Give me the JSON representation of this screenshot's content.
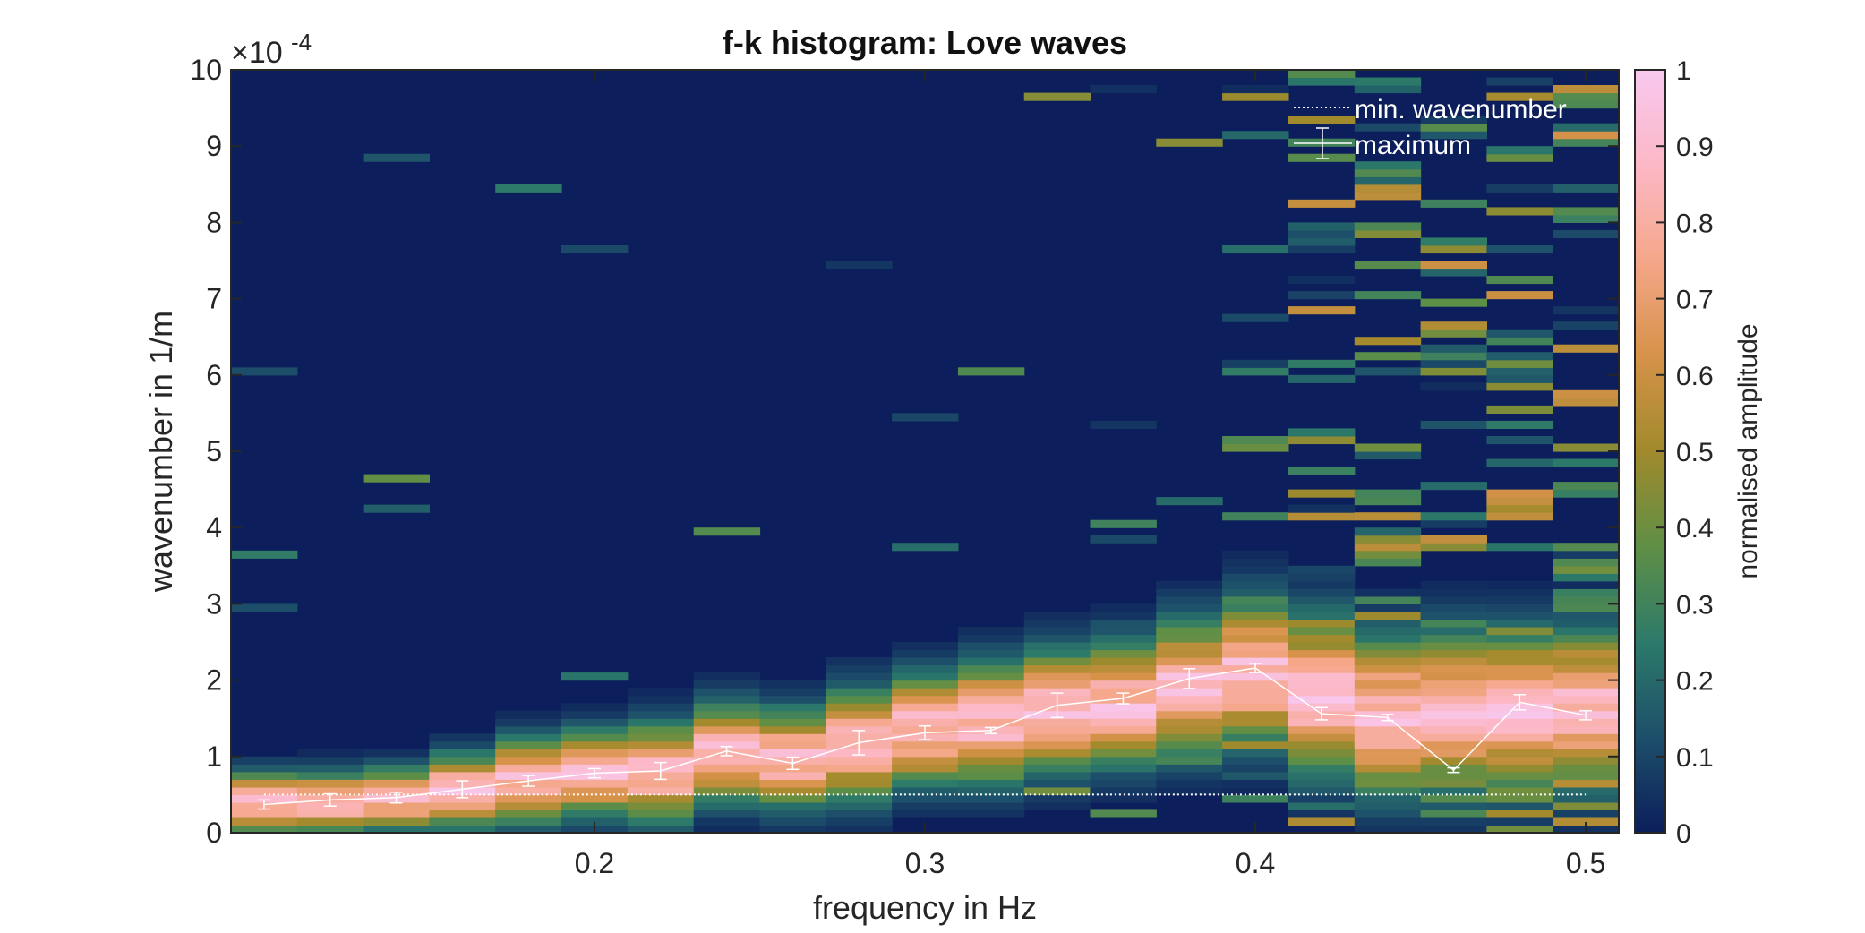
{
  "chart_data": {
    "type": "heatmap",
    "title": "f-k histogram: Love waves",
    "xlabel": "frequency in Hz",
    "ylabel": "wavenumber in 1/m",
    "y_exponent": {
      "base": "×10",
      "power": "-4"
    },
    "xlim": [
      0.09,
      0.51
    ],
    "ylim": [
      0,
      0.001
    ],
    "x_ticks": [
      {
        "value": 0.2,
        "label": "0.2"
      },
      {
        "value": 0.3,
        "label": "0.3"
      },
      {
        "value": 0.4,
        "label": "0.4"
      },
      {
        "value": 0.5,
        "label": "0.5"
      }
    ],
    "y_ticks": [
      {
        "value": 0.0,
        "label": "0"
      },
      {
        "value": 0.0001,
        "label": "1"
      },
      {
        "value": 0.0002,
        "label": "2"
      },
      {
        "value": 0.0003,
        "label": "3"
      },
      {
        "value": 0.0004,
        "label": "4"
      },
      {
        "value": 0.0005,
        "label": "5"
      },
      {
        "value": 0.0006,
        "label": "6"
      },
      {
        "value": 0.0007,
        "label": "7"
      },
      {
        "value": 0.0008,
        "label": "8"
      },
      {
        "value": 0.0009,
        "label": "9"
      },
      {
        "value": 0.001,
        "label": "10"
      }
    ],
    "colorbar": {
      "label": "normalised amplitude",
      "range": [
        0,
        1
      ],
      "ticks": [
        "0",
        "0.1",
        "0.2",
        "0.3",
        "0.4",
        "0.5",
        "0.6",
        "0.7",
        "0.8",
        "0.9",
        "1"
      ],
      "colormap": [
        "#0c1e5b",
        "#1d4f6a",
        "#2c7a6a",
        "#5f8f46",
        "#a18a2c",
        "#d69249",
        "#f5a78a",
        "#fcb8c6",
        "#f8c8ef"
      ]
    },
    "background_color": "#0c1e5b",
    "heatmap_columns": {
      "frequencies": [
        0.1,
        0.12,
        0.14,
        0.16,
        0.18,
        0.2,
        0.22,
        0.24,
        0.26,
        0.28,
        0.3,
        0.32,
        0.34,
        0.36,
        0.38,
        0.4,
        0.42,
        0.44,
        0.46,
        0.48,
        0.5
      ],
      "column_width": 0.02,
      "peak_wavenumber": [
        4e-05,
        4e-05,
        4.5e-05,
        5.5e-05,
        6.8e-05,
        7.8e-05,
        8e-05,
        0.000105,
        9.8e-05,
        0.000115,
        0.000135,
        0.000145,
        0.00016,
        0.00017,
        0.00019,
        0.00021,
        0.00018,
        0.000155,
        0.00016,
        0.00016,
        0.00016
      ],
      "spread_wavenumber": [
        2.5e-05,
        2.5e-05,
        2.5e-05,
        3e-05,
        3.5e-05,
        3.5e-05,
        4e-05,
        4e-05,
        4e-05,
        4.5e-05,
        4.5e-05,
        5e-05,
        5e-05,
        5e-05,
        5.5e-05,
        6e-05,
        6.5e-05,
        6.5e-05,
        6.5e-05,
        6.5e-05,
        6.5e-05
      ],
      "noise_level": [
        0.05,
        0.01,
        0.01,
        0.01,
        0.01,
        0.01,
        0.01,
        0.01,
        0.01,
        0.01,
        0.02,
        0.03,
        0.04,
        0.06,
        0.1,
        0.22,
        0.32,
        0.32,
        0.36,
        0.38,
        0.4
      ]
    },
    "series": [
      {
        "name": "min. wavenumber",
        "style": "dotted",
        "color": "#ffffff",
        "x": [
          0.1,
          0.5
        ],
        "y": [
          5e-05,
          5e-05
        ]
      },
      {
        "name": "maximum",
        "style": "errorbar",
        "color": "#ffffff",
        "x": [
          0.1,
          0.12,
          0.14,
          0.16,
          0.18,
          0.2,
          0.22,
          0.24,
          0.26,
          0.28,
          0.3,
          0.32,
          0.34,
          0.36,
          0.38,
          0.4,
          0.42,
          0.44,
          0.46,
          0.48,
          0.5
        ],
        "y": [
          3.7e-05,
          4.3e-05,
          4.6e-05,
          5.7e-05,
          6.8e-05,
          7.8e-05,
          8.1e-05,
          0.000107,
          9.1e-05,
          0.000118,
          0.000131,
          0.000134,
          0.000167,
          0.000176,
          0.000202,
          0.000216,
          0.000156,
          0.000151,
          8.2e-05,
          0.000171,
          0.000154
        ],
        "err": [
          6e-06,
          8e-06,
          7e-06,
          1.1e-05,
          7e-06,
          6e-06,
          1.1e-05,
          6e-06,
          8e-06,
          1.6e-05,
          9e-06,
          4e-06,
          1.6e-05,
          7e-06,
          1.3e-05,
          6e-06,
          8e-06,
          4e-06,
          3e-06,
          1e-05,
          6e-06
        ]
      }
    ],
    "legend": {
      "placement": "top-right",
      "entries": [
        "min. wavenumber",
        "maximum"
      ]
    },
    "grid": false
  }
}
